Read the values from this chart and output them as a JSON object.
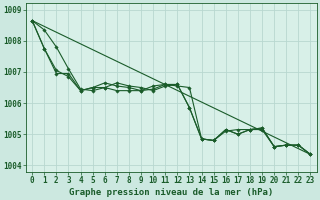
{
  "background_color": "#cce8e0",
  "plot_bg_color": "#d8f0e8",
  "grid_color": "#b8d8d0",
  "line_color": "#1a5c2a",
  "marker_color": "#1a5c2a",
  "xlabel": "Graphe pression niveau de la mer (hPa)",
  "ylim": [
    1003.8,
    1009.2
  ],
  "xlim": [
    -0.5,
    23.5
  ],
  "yticks": [
    1004,
    1005,
    1006,
    1007,
    1008,
    1009
  ],
  "xticks": [
    0,
    1,
    2,
    3,
    4,
    5,
    6,
    7,
    8,
    9,
    10,
    11,
    12,
    13,
    14,
    15,
    16,
    17,
    18,
    19,
    20,
    21,
    22,
    23
  ],
  "series1": [
    1008.65,
    1008.35,
    1007.8,
    1007.1,
    1006.45,
    1006.4,
    1006.5,
    1006.65,
    1006.55,
    1006.5,
    1006.4,
    1006.55,
    1006.6,
    1005.85,
    1004.85,
    1004.8,
    1005.15,
    1005.0,
    1005.15,
    1005.2,
    1004.6,
    1004.65,
    1004.65,
    1004.35
  ],
  "series2": [
    1008.65,
    1007.75,
    1006.95,
    1006.95,
    1006.4,
    1006.5,
    1006.5,
    1006.4,
    1006.4,
    1006.4,
    1006.45,
    1006.6,
    1006.55,
    1006.5,
    1004.85,
    1004.8,
    1005.1,
    1005.15,
    1005.15,
    1005.2,
    1004.6,
    1004.65,
    1004.65,
    1004.35
  ],
  "series3": [
    1008.65,
    1007.75,
    1007.05,
    1006.85,
    1006.4,
    1006.5,
    1006.65,
    1006.55,
    1006.5,
    1006.4,
    1006.55,
    1006.6,
    1006.6,
    1005.85,
    1004.85,
    1004.8,
    1005.15,
    1005.0,
    1005.15,
    1005.15,
    1004.6,
    1004.65,
    1004.65,
    1004.35
  ],
  "trend_x": [
    0,
    23
  ],
  "trend_y": [
    1008.65,
    1004.35
  ],
  "font_color": "#1a5c2a",
  "tick_fontsize": 5.5,
  "label_fontsize": 6.5
}
